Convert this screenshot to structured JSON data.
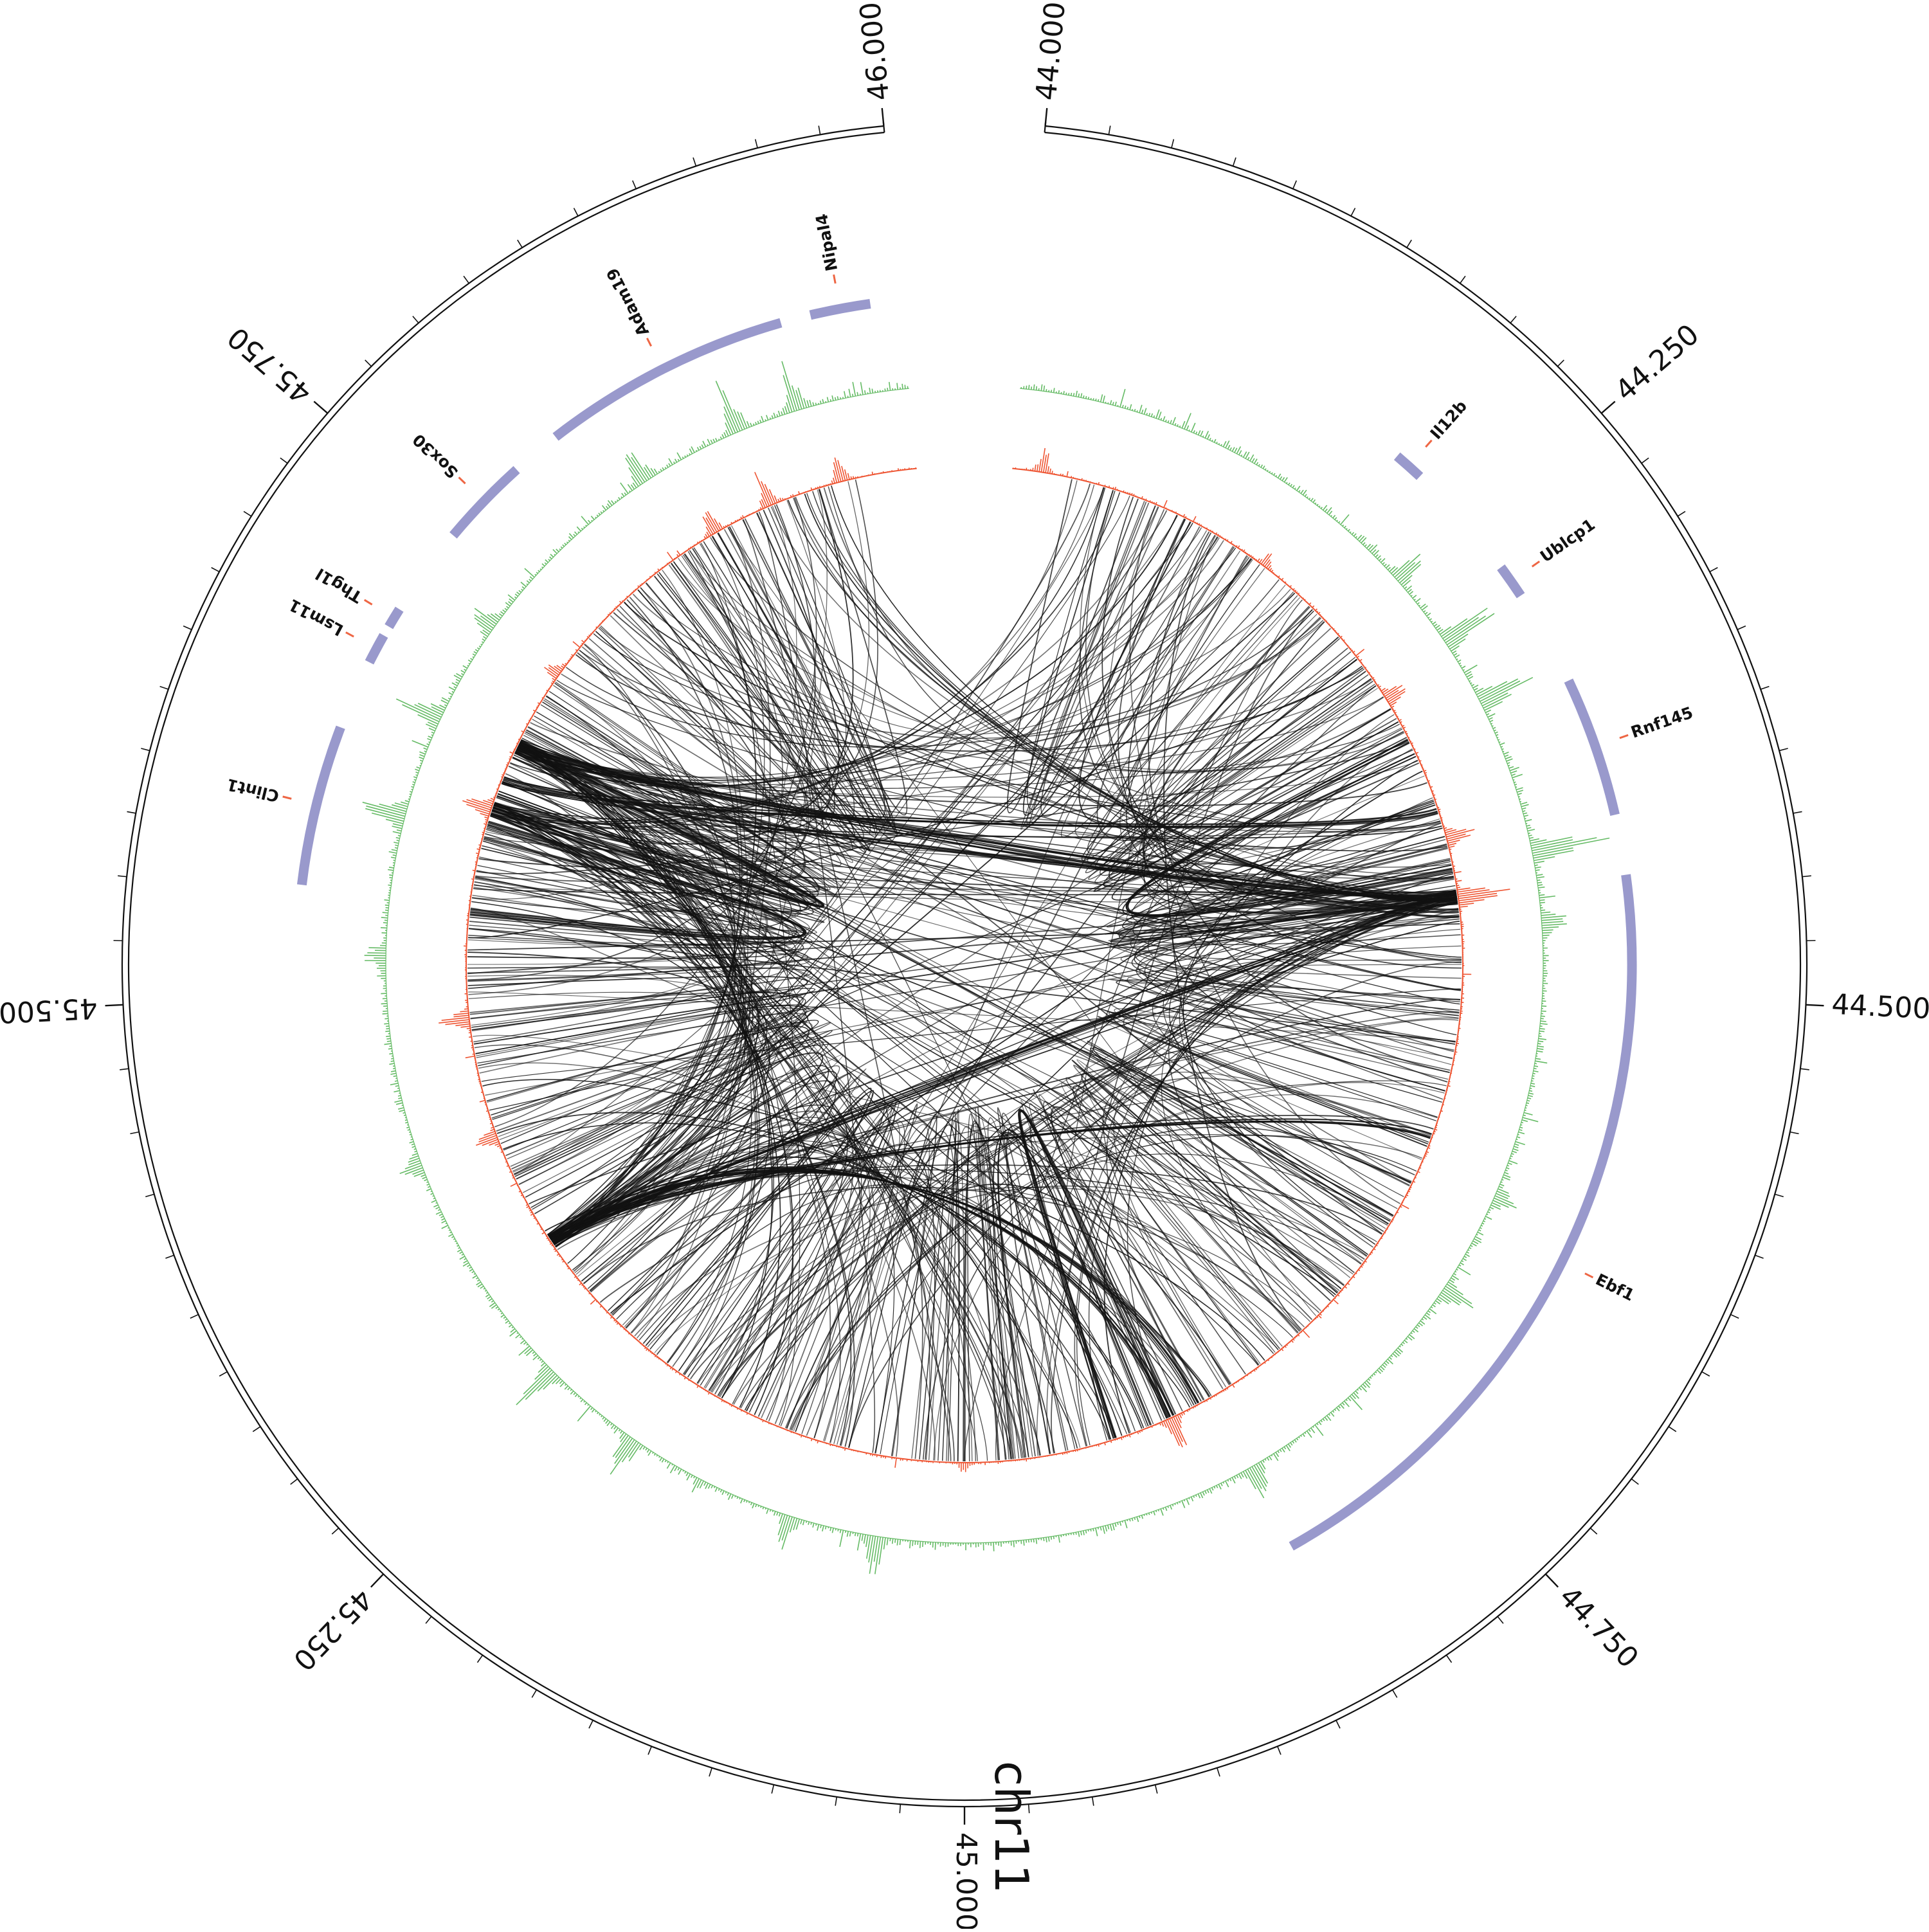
{
  "figure": {
    "chromosome": "chr11",
    "region_start_mb": 44.0,
    "region_end_mb": 46.0,
    "position_labels": [
      "44.000",
      "44.250",
      "44.500",
      "44.750",
      "45.000",
      "45.250",
      "45.500",
      "45.750",
      "46.000"
    ],
    "colors": {
      "genes": "#9999cc",
      "gene_tick": "#ee6644",
      "signal_green": "#66bb66",
      "signal_red": "#ee5533",
      "links": "#111111",
      "axis": "#111111"
    },
    "genes": [
      {
        "name": "Nipal4",
        "start": 45.955,
        "end": 45.985
      },
      {
        "name": "Adam19",
        "start": 45.815,
        "end": 45.94
      },
      {
        "name": "Sox30",
        "start": 45.745,
        "end": 45.79
      },
      {
        "name": "Thg1l",
        "start": 45.69,
        "end": 45.7
      },
      {
        "name": "Lsm11",
        "start": 45.67,
        "end": 45.685
      },
      {
        "name": "Clint1",
        "start": 45.555,
        "end": 45.635
      },
      {
        "name": "Il12b",
        "start": 44.2,
        "end": 44.215
      },
      {
        "name": "Ublcp1",
        "start": 44.275,
        "end": 44.292
      },
      {
        "name": "Rnf145",
        "start": 44.34,
        "end": 44.41
      },
      {
        "name": "Ebf1",
        "start": 44.44,
        "end": 44.832
      }
    ],
    "tracks": [
      {
        "name": "green_signal",
        "peaks": [
          [
            44.245,
            0.45
          ],
          [
            44.29,
            0.8
          ],
          [
            44.33,
            0.7
          ],
          [
            44.42,
            0.95
          ],
          [
            44.46,
            0.35
          ],
          [
            44.62,
            0.3
          ],
          [
            44.68,
            0.4
          ],
          [
            44.83,
            0.5
          ],
          [
            45.05,
            0.5
          ],
          [
            45.1,
            0.4
          ],
          [
            45.2,
            0.55
          ],
          [
            45.26,
            0.5
          ],
          [
            45.4,
            0.3
          ],
          [
            45.52,
            0.25
          ],
          [
            45.6,
            0.6
          ],
          [
            45.66,
            0.55
          ],
          [
            45.72,
            0.35
          ],
          [
            45.84,
            0.45
          ],
          [
            45.9,
            0.6
          ],
          [
            45.935,
            0.5
          ]
        ]
      },
      {
        "name": "red_signal",
        "peaks": [
          [
            44.02,
            0.4
          ],
          [
            44.18,
            0.25
          ],
          [
            44.3,
            0.45
          ],
          [
            44.4,
            0.6
          ],
          [
            44.44,
            0.95
          ],
          [
            44.86,
            0.7
          ],
          [
            45.0,
            0.15
          ],
          [
            45.4,
            0.4
          ],
          [
            45.48,
            0.55
          ],
          [
            45.62,
            0.6
          ],
          [
            45.72,
            0.35
          ],
          [
            45.86,
            0.5
          ],
          [
            45.9,
            0.55
          ],
          [
            45.95,
            0.45
          ]
        ]
      }
    ],
    "interactions": {
      "hubs": [
        44.44,
        45.322,
        45.62,
        45.665
      ],
      "strong_pairs": [
        [
          44.44,
          45.322
        ],
        [
          44.44,
          45.64
        ],
        [
          44.44,
          45.665
        ],
        [
          45.322,
          44.86
        ],
        [
          45.322,
          44.84
        ],
        [
          45.322,
          44.6
        ],
        [
          45.64,
          44.38
        ],
        [
          45.665,
          44.45
        ],
        [
          44.33,
          44.42
        ],
        [
          44.86,
          44.9
        ],
        [
          45.63,
          45.66
        ],
        [
          45.61,
          45.55
        ]
      ],
      "random_seed": 7,
      "random_links": 520
    }
  }
}
